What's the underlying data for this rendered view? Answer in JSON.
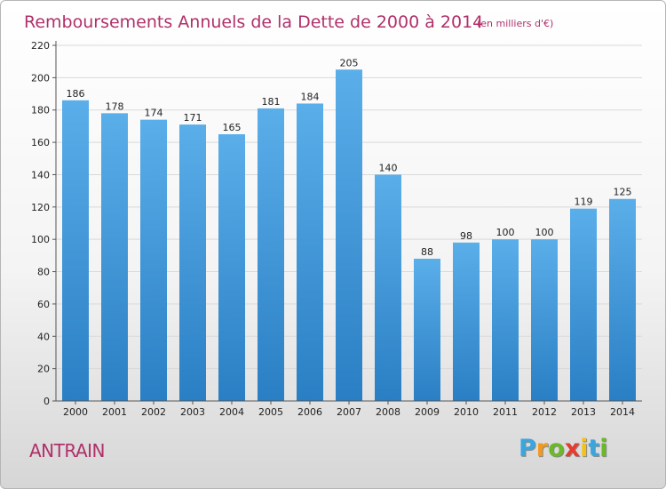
{
  "chart_data": {
    "type": "bar",
    "title": "Remboursements Annuels de la Dette de 2000 à 2014",
    "subtitle": "(en milliers d'€)",
    "categories": [
      "2000",
      "2001",
      "2002",
      "2003",
      "2004",
      "2005",
      "2006",
      "2007",
      "2008",
      "2009",
      "2010",
      "2011",
      "2012",
      "2013",
      "2014"
    ],
    "values": [
      186,
      178,
      174,
      171,
      165,
      181,
      184,
      205,
      140,
      88,
      98,
      100,
      100,
      119,
      125
    ],
    "ylim": [
      0,
      220
    ],
    "yticks": [
      0,
      20,
      40,
      60,
      80,
      100,
      120,
      140,
      160,
      180,
      200,
      220
    ],
    "xlabel": "",
    "ylabel": "",
    "grid": true,
    "bar_color_top": "#5aaee9",
    "bar_color_bottom": "#2a7fc4"
  },
  "commune": "ANTRAIN",
  "logo": {
    "letters": [
      "P",
      "r",
      "o",
      "x",
      "i",
      "t",
      "i"
    ],
    "colors": [
      "#3aa6dd",
      "#f29a1f",
      "#6bb82a",
      "#e63b2e",
      "#f2c21a",
      "#3aa6dd",
      "#6bb82a"
    ]
  },
  "colors": {
    "title": "#b0306a"
  }
}
